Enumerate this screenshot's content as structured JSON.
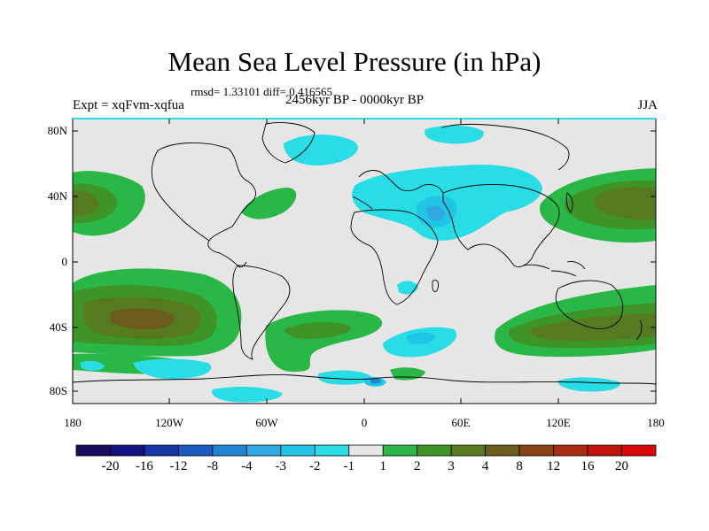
{
  "title": "Mean Sea Level Pressure (in hPa)",
  "stats": "rmsd= 1.33101 diff= 0.416565",
  "experiment": "Expt = xqFvm-xqfua",
  "period": "2456kyr BP - 0000kyr BP",
  "season": "JJA",
  "lat_ticks": [
    "80N",
    "40N",
    "0",
    "40S",
    "80S"
  ],
  "lon_ticks": [
    "180",
    "120W",
    "60W",
    "0",
    "60E",
    "120E",
    "180"
  ],
  "colorbar": {
    "labels": [
      "-20",
      "-16",
      "-12",
      "-8",
      "-4",
      "-3",
      "-2",
      "-1",
      "1",
      "2",
      "3",
      "4",
      "8",
      "12",
      "16",
      "20"
    ],
    "colors": [
      "#1a0a5c",
      "#13137f",
      "#1736a6",
      "#1a5cc0",
      "#1f84d2",
      "#2fa9e2",
      "#1fc6e6",
      "#29dde6",
      "#e6e6e6",
      "#29b845",
      "#3f9427",
      "#567a1f",
      "#6b5d19",
      "#8a4514",
      "#a82c10",
      "#c1130c",
      "#d80606"
    ]
  },
  "map": {
    "background": "#e6e6e6",
    "coast": "#000000"
  }
}
